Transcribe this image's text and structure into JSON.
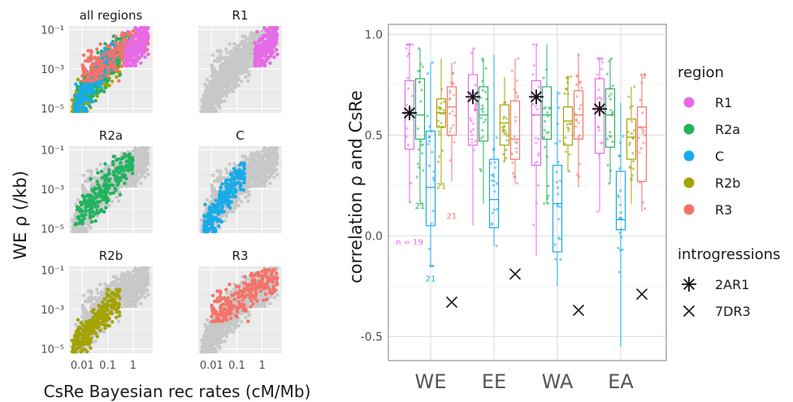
{
  "colors": {
    "R1": "#e66ae8",
    "R2a": "#22b35f",
    "C": "#19abe8",
    "R2b": "#a3a300",
    "R3": "#f57368",
    "background_points": "#c8c8c8"
  },
  "chart_data": [
    {
      "type": "scatter",
      "facet_titles": [
        "all regions",
        "R1",
        "R2a",
        "C",
        "R2b",
        "R3"
      ],
      "xlabel": "CsRe Bayesian rec rates (cM/Mb)",
      "ylabel": "WE ρ (/kb)",
      "x_scale": "log",
      "y_scale": "log",
      "x_ticks": [
        0.01,
        0.1,
        1
      ],
      "x_tick_labels": [
        "0.01",
        "0.1",
        "1"
      ],
      "y_ticks": [
        1e-05,
        0.001,
        0.1
      ],
      "y_tick_labels": [
        "10⁻⁵",
        "10⁻³",
        "10⁻¹"
      ],
      "xlim": [
        0.003,
        6
      ],
      "ylim": [
        6e-06,
        0.15
      ],
      "series_ranges": {
        "R1": {
          "x": [
            0.5,
            4
          ],
          "y": [
            0.003,
            0.06
          ]
        },
        "R2a": {
          "x": [
            0.005,
            1
          ],
          "y": [
            3e-05,
            0.03
          ]
        },
        "C": {
          "x": [
            0.005,
            0.2
          ],
          "y": [
            1e-05,
            0.01
          ]
        },
        "R2b": {
          "x": [
            0.004,
            0.3
          ],
          "y": [
            1e-05,
            0.005
          ]
        },
        "R3": {
          "x": [
            0.01,
            4
          ],
          "y": [
            0.0005,
            0.05
          ]
        }
      }
    },
    {
      "type": "box",
      "categories": [
        "WE",
        "EE",
        "WA",
        "EA"
      ],
      "ylabel": "correlation ρ and CsRe",
      "ylim": [
        -0.62,
        1.05
      ],
      "y_ticks": [
        -0.5,
        0.0,
        0.5,
        1.0
      ],
      "y_tick_labels": [
        "-0.5",
        "0.0",
        "0.5",
        "1.0"
      ],
      "legend_region_title": "region",
      "legend_introgression_title": "introgressions",
      "series": [
        {
          "name": "R1",
          "boxes": [
            {
              "q1": 0.43,
              "median": 0.61,
              "q3": 0.77,
              "min": 0.16,
              "max": 0.95
            },
            {
              "q1": 0.45,
              "median": 0.71,
              "q3": 0.8,
              "min": 0.05,
              "max": 0.93
            },
            {
              "q1": 0.35,
              "median": 0.6,
              "q3": 0.77,
              "min": -0.1,
              "max": 0.95
            },
            {
              "q1": 0.41,
              "median": 0.64,
              "q3": 0.78,
              "min": 0.12,
              "max": 0.88
            }
          ]
        },
        {
          "name": "R2a",
          "boxes": [
            {
              "q1": 0.48,
              "median": 0.6,
              "q3": 0.78,
              "min": 0.16,
              "max": 0.93
            },
            {
              "q1": 0.47,
              "median": 0.6,
              "q3": 0.74,
              "min": 0.16,
              "max": 0.88
            },
            {
              "q1": 0.48,
              "median": 0.6,
              "q3": 0.74,
              "min": 0.16,
              "max": 0.95
            },
            {
              "q1": 0.44,
              "median": 0.6,
              "q3": 0.73,
              "min": 0.26,
              "max": 0.88
            }
          ]
        },
        {
          "name": "C",
          "boxes": [
            {
              "q1": 0.05,
              "median": 0.24,
              "q3": 0.52,
              "min": -0.15,
              "max": 0.86
            },
            {
              "q1": 0.04,
              "median": 0.18,
              "q3": 0.38,
              "min": -0.05,
              "max": 0.9
            },
            {
              "q1": -0.08,
              "median": 0.16,
              "q3": 0.35,
              "min": -0.25,
              "max": 0.72
            },
            {
              "q1": 0.03,
              "median": 0.08,
              "q3": 0.32,
              "min": -0.55,
              "max": 0.66
            }
          ]
        },
        {
          "name": "R2b",
          "boxes": [
            {
              "q1": 0.54,
              "median": 0.61,
              "q3": 0.68,
              "min": 0.25,
              "max": 0.88
            },
            {
              "q1": 0.45,
              "median": 0.56,
              "q3": 0.65,
              "min": 0.37,
              "max": 0.79
            },
            {
              "q1": 0.45,
              "median": 0.57,
              "q3": 0.64,
              "min": 0.32,
              "max": 0.79
            },
            {
              "q1": 0.38,
              "median": 0.49,
              "q3": 0.58,
              "min": 0.16,
              "max": 0.74
            }
          ]
        },
        {
          "name": "R3",
          "boxes": [
            {
              "q1": 0.5,
              "median": 0.64,
              "q3": 0.74,
              "min": 0.27,
              "max": 0.86
            },
            {
              "q1": 0.38,
              "median": 0.48,
              "q3": 0.67,
              "min": 0.26,
              "max": 0.88
            },
            {
              "q1": 0.48,
              "median": 0.6,
              "q3": 0.72,
              "min": 0.24,
              "max": 0.9
            },
            {
              "q1": 0.27,
              "median": 0.54,
              "q3": 0.64,
              "min": 0.12,
              "max": 0.8
            }
          ]
        }
      ],
      "introgressions": [
        {
          "name": "2AR1",
          "values": [
            0.61,
            0.69,
            0.69,
            0.63
          ]
        },
        {
          "name": "7DR3",
          "values": [
            -0.33,
            -0.19,
            -0.37,
            -0.29
          ]
        }
      ],
      "count_labels": [
        {
          "text": "n = 19",
          "series": "R1",
          "y": -0.03
        },
        {
          "text": "21",
          "series": "R2a",
          "y": 0.15
        },
        {
          "text": "21",
          "series": "C",
          "y": -0.21
        },
        {
          "text": "21",
          "series": "R2b",
          "y": 0.25
        },
        {
          "text": "21",
          "series": "R3",
          "y": 0.1
        }
      ]
    }
  ]
}
